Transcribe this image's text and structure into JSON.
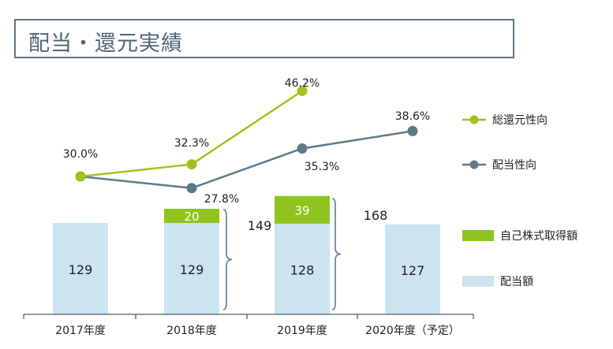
{
  "title": "配当・還元実績",
  "colors": {
    "total_line": "#9fc31f",
    "payout_line": "#5e7a89",
    "buyback_bar": "#8fc31f",
    "dividend_bar": "#cce3f0",
    "bracket": "#5e7a89",
    "text": "#222222"
  },
  "chart_data": {
    "type": "bar+line",
    "categories": [
      "2017年度",
      "2018年度",
      "2019年度",
      "2020年度（予定）"
    ],
    "series": [
      {
        "name": "配当額",
        "kind": "bar",
        "values": [
          129,
          129,
          128,
          127
        ],
        "labels": [
          "129",
          "129",
          "128",
          "127"
        ]
      },
      {
        "name": "自己株式取得額",
        "kind": "bar",
        "values": [
          null,
          20,
          39,
          null
        ],
        "labels": [
          "",
          "20",
          "39",
          ""
        ]
      },
      {
        "name": "総還元性向",
        "kind": "line",
        "values": [
          30.0,
          32.3,
          46.2,
          null
        ],
        "labels": [
          "30.0%",
          "32.3%",
          "46.2%",
          ""
        ]
      },
      {
        "name": "配当性向",
        "kind": "line",
        "values": [
          30.0,
          27.8,
          35.3,
          38.6
        ],
        "labels": [
          "",
          "27.8%",
          "35.3%",
          "38.6%"
        ]
      }
    ],
    "totals": [
      {
        "category": "2018年度",
        "label": "149"
      },
      {
        "category": "2019年度",
        "label": "168"
      }
    ],
    "legend": [
      "総還元性向",
      "配当性向",
      "自己株式取得額",
      "配当額"
    ],
    "legend_position": "right"
  }
}
